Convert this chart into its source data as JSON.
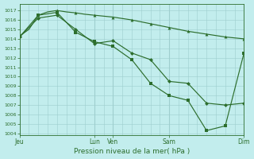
{
  "title": "Pression niveau de la mer( hPa )",
  "bg_color": "#c2eded",
  "grid_color": "#9ecece",
  "line_color": "#2d6e2d",
  "ylim": [
    1003.8,
    1017.7
  ],
  "yticks": [
    1004,
    1005,
    1006,
    1007,
    1008,
    1009,
    1010,
    1011,
    1012,
    1013,
    1014,
    1015,
    1016,
    1017
  ],
  "xtick_labels": [
    "Jeu",
    "",
    "Lun",
    "Ven",
    "",
    "",
    "Sam",
    "",
    "",
    "Dim"
  ],
  "xlim": [
    0,
    12
  ],
  "day_lines_x": [
    0,
    4,
    5,
    8,
    12
  ],
  "day_label_txt": [
    "Jeu",
    "Lun",
    "Ven",
    "Sam",
    "Dim"
  ],
  "line1_x": [
    0,
    0.5,
    1.0,
    1.5,
    2.0,
    2.5,
    3.0,
    3.5,
    4.0,
    4.5,
    5.0,
    5.5,
    6.0,
    6.5,
    7.0,
    7.5,
    8.0,
    8.5,
    9.0,
    9.5,
    10.0,
    10.5,
    11.0,
    11.5,
    12.0
  ],
  "line1_y": [
    1014.3,
    1015.0,
    1016.5,
    1016.85,
    1017.0,
    1016.85,
    1016.75,
    1016.6,
    1016.5,
    1016.4,
    1016.3,
    1016.15,
    1016.0,
    1015.8,
    1015.6,
    1015.4,
    1015.2,
    1015.0,
    1014.8,
    1014.65,
    1014.5,
    1014.35,
    1014.2,
    1014.1,
    1014.0
  ],
  "line1_mk_x": [
    0,
    1,
    2,
    3,
    4,
    5,
    6,
    7,
    8,
    9,
    10,
    11,
    12
  ],
  "line1_mk_y": [
    1014.3,
    1016.5,
    1017.0,
    1016.75,
    1016.5,
    1016.3,
    1016.0,
    1015.6,
    1015.2,
    1014.8,
    1014.5,
    1014.2,
    1014.0
  ],
  "line2_x": [
    0,
    1,
    2,
    3,
    4,
    5,
    6,
    7,
    8,
    9,
    10,
    11,
    12
  ],
  "line2_y": [
    1014.2,
    1016.2,
    1016.5,
    1015.0,
    1013.5,
    1013.8,
    1012.5,
    1011.8,
    1009.5,
    1009.3,
    1007.2,
    1007.0,
    1007.2
  ],
  "line3_x": [
    0,
    1,
    2,
    3,
    4,
    5,
    6,
    7,
    8,
    9,
    10,
    11,
    12
  ],
  "line3_y": [
    1014.2,
    1016.5,
    1016.8,
    1014.7,
    1013.7,
    1013.2,
    1011.8,
    1009.3,
    1008.0,
    1007.5,
    1004.3,
    1004.8,
    1012.5
  ]
}
